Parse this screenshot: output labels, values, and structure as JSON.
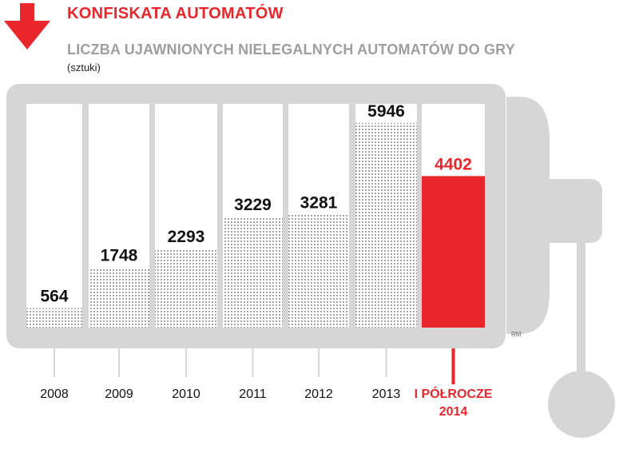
{
  "header": {
    "title": "KONFISKATA AUTOMATÓW",
    "subtitle": "LICZBA UJAWNIONYCH NIELEGALNYCH AUTOMATÓW DO GRY",
    "unit": "(sztuki)"
  },
  "signature": "RM",
  "colors": {
    "accent": "#e8262b",
    "frame": "#d6d6d6",
    "dots": "#9a9a9a",
    "text": "#111111"
  },
  "icons": {
    "arrow": "arrow-down-icon"
  },
  "chart_data": {
    "type": "bar",
    "title": "KONFISKATA AUTOMATÓW",
    "subtitle": "LICZBA UJAWNIONYCH NIELEGALNYCH AUTOMATÓW DO GRY",
    "ylabel": "(sztuki)",
    "xlabel": "",
    "categories": [
      "2008",
      "2009",
      "2010",
      "2011",
      "2012",
      "2013",
      "I PÓŁROCZE 2014"
    ],
    "values": [
      564,
      1748,
      2293,
      3229,
      3281,
      5946,
      4402
    ],
    "value_labels": [
      "564",
      "1748",
      "2293",
      "3229",
      "3281",
      "5946",
      "4402"
    ],
    "highlight_index": 6,
    "ylim": [
      0,
      6500
    ],
    "grid": false,
    "legend": "none"
  }
}
